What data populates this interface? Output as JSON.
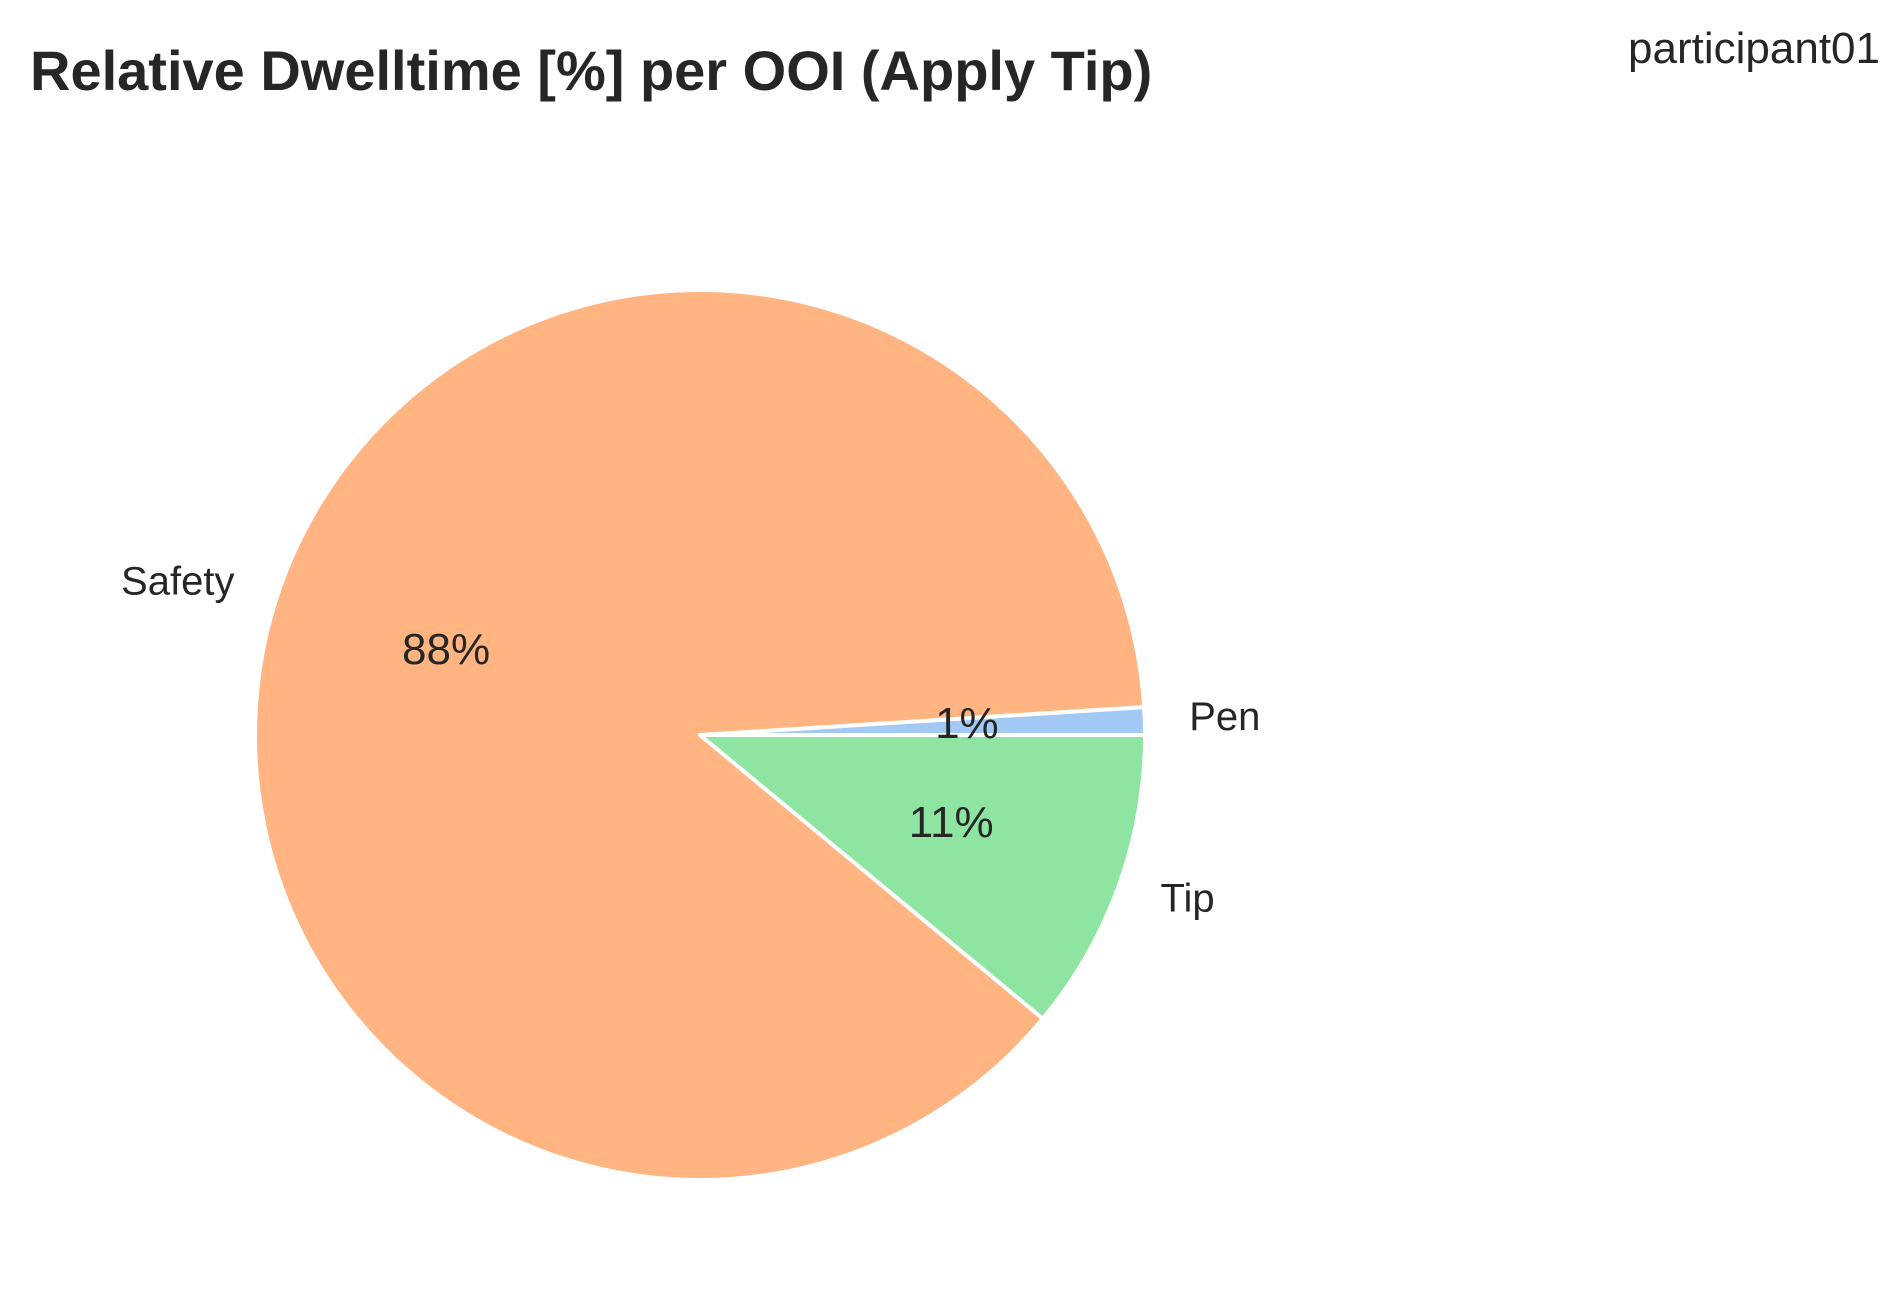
{
  "chart_data": {
    "type": "pie",
    "title": "Relative Dwelltime [%] per OOI (Apply Tip)",
    "annotation": "participant01",
    "start_angle_deg": 0,
    "direction": "counterclockwise",
    "slices": [
      {
        "label": "Pen",
        "value": 1,
        "pct_label": "1%",
        "color": "#a1c9f4"
      },
      {
        "label": "Safety",
        "value": 88,
        "pct_label": "88%",
        "color": "#ffb482"
      },
      {
        "label": "Tip",
        "value": 11,
        "pct_label": "11%",
        "color": "#8de5a1"
      }
    ]
  }
}
